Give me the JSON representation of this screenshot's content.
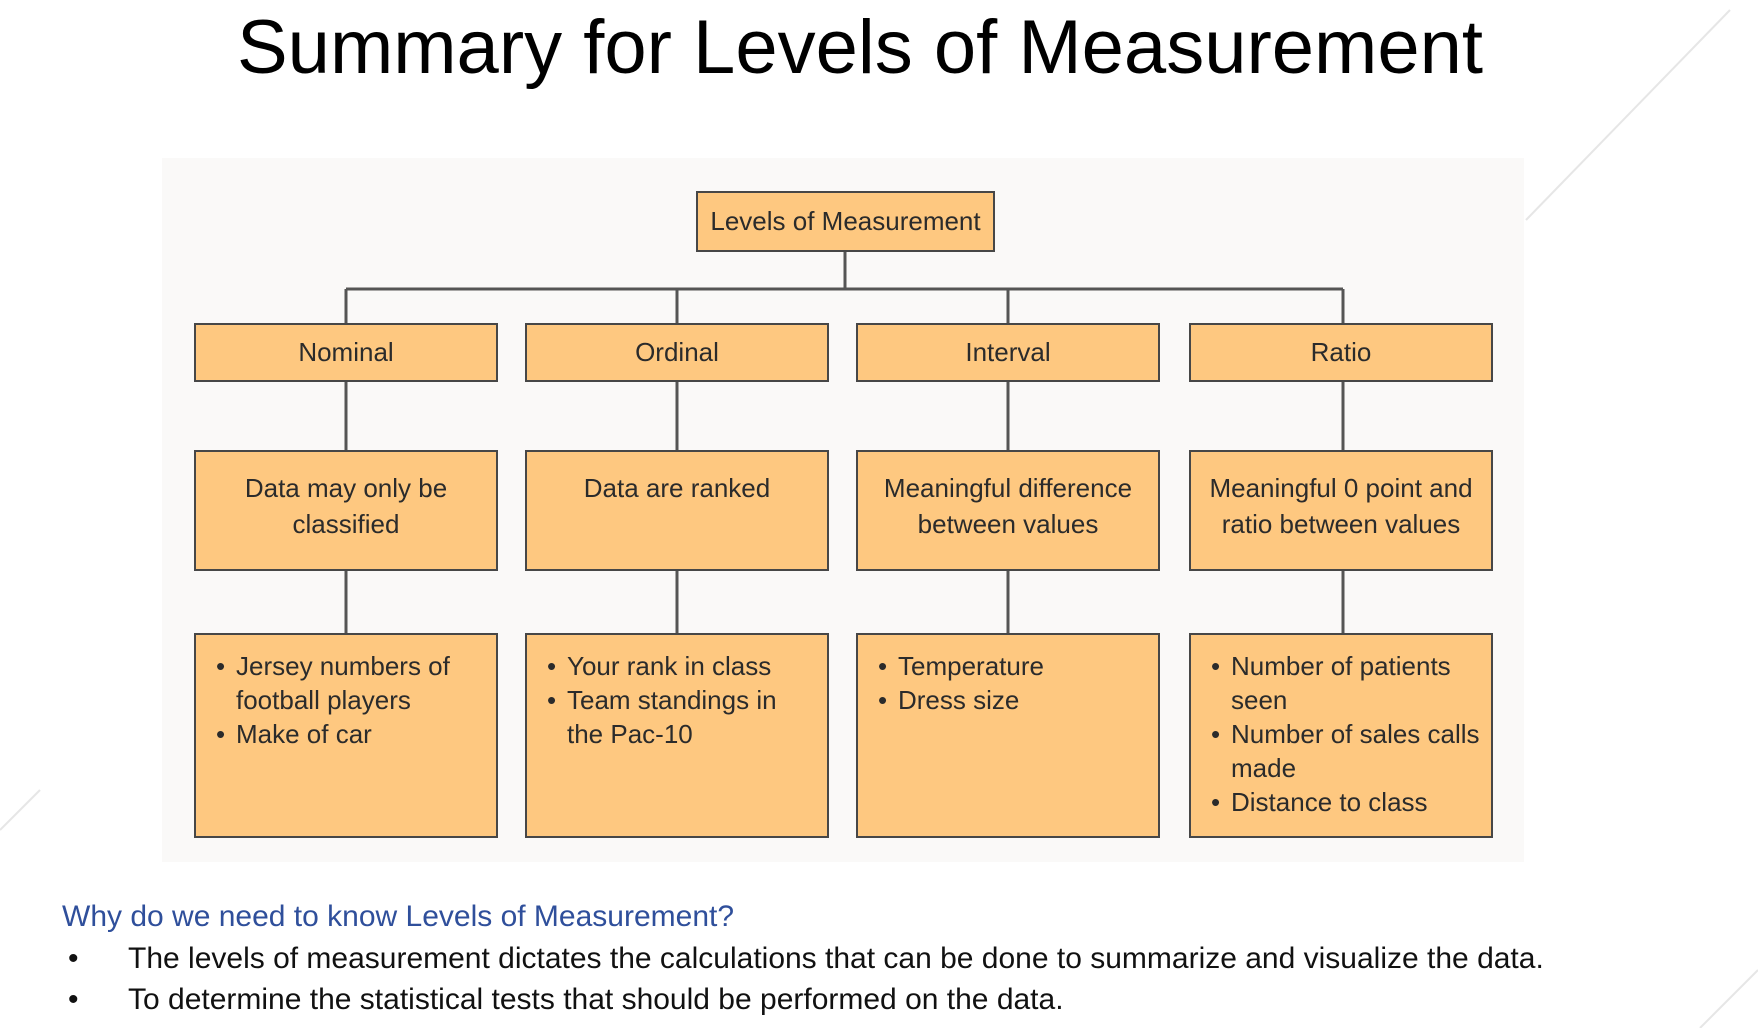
{
  "slide": {
    "title": "Summary for Levels of Measurement"
  },
  "diagram": {
    "root": "Levels of Measurement",
    "levels": [
      {
        "name": "Nominal",
        "description": "Data may only be classified",
        "examples": [
          "Jersey numbers of football players",
          "Make of car"
        ]
      },
      {
        "name": "Ordinal",
        "description": "Data are ranked",
        "examples": [
          "Your rank in class",
          "Team standings in the Pac-10"
        ]
      },
      {
        "name": "Interval",
        "description": "Meaningful difference between values",
        "examples": [
          "Temperature",
          "Dress size"
        ]
      },
      {
        "name": "Ratio",
        "description": "Meaningful 0 point and ratio between values",
        "examples": [
          "Number of patients seen",
          "Number of sales calls made",
          "Distance to class"
        ]
      }
    ]
  },
  "notes": {
    "question": "Why do we need to know Levels of Measurement?",
    "bullets": [
      "The levels of measurement dictates the calculations that can be done to summarize and visualize the data.",
      "To determine the statistical tests that should be performed on the data."
    ]
  },
  "colors": {
    "box_fill": "#fec880",
    "box_border": "#474747",
    "question_text": "#2f4f9b"
  }
}
